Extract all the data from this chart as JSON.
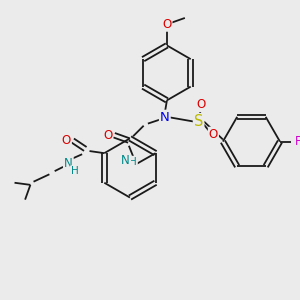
{
  "background_color": "#ebebeb",
  "bond_color": "#1a1a1a",
  "atom_colors": {
    "N": "#0000ee",
    "O": "#dd0000",
    "S": "#bbbb00",
    "F": "#cc00cc",
    "NH": "#008888",
    "C": "#1a1a1a"
  },
  "lw": 1.3,
  "fs": 8.5,
  "figsize": [
    3.0,
    3.0
  ],
  "dpi": 100
}
